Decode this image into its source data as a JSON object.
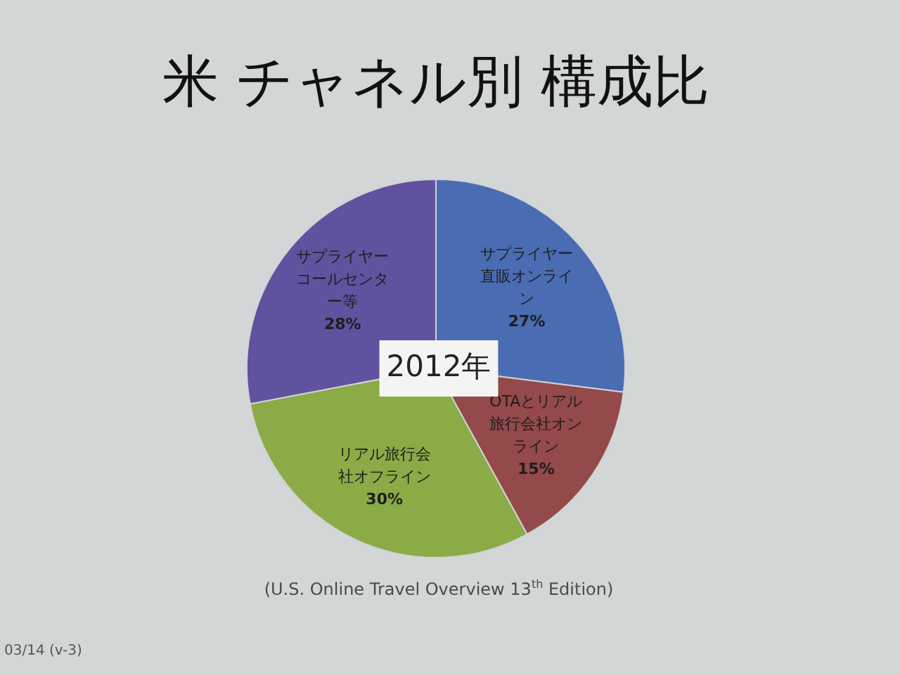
{
  "chart_data": {
    "type": "pie",
    "title": "米 チャネル別 構成比",
    "categories": [
      "サプライヤー直販オンライン",
      "OTAとリアル旅行会社オンライン",
      "リアル旅行会社オフライン",
      "サプライヤーコールセンター等"
    ],
    "values": [
      27,
      15,
      30,
      28
    ],
    "value_labels": [
      "27%",
      "15%",
      "30%",
      "28%"
    ],
    "colors": [
      "#4a6cb3",
      "#94494a",
      "#8aab46",
      "#60529f"
    ],
    "annotations": [
      "2012年",
      "(U.S. Online Travel Overview 13$^{th}$ Edition)",
      "03/14 (v-3)"
    ]
  }
}
